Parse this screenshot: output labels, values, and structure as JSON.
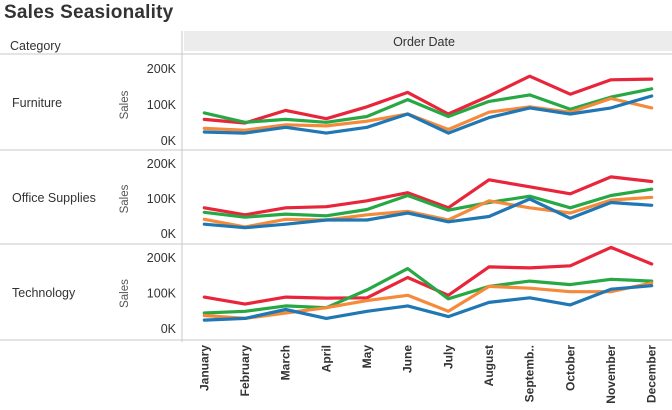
{
  "title": "Sales Seasionality",
  "header": {
    "row_dimension": "Category",
    "column_dimension": "Order Date"
  },
  "colors": {
    "red": "#e8253a",
    "green": "#27a844",
    "orange": "#f58a3b",
    "blue": "#1f77b4",
    "header_bg": "#ececec",
    "divider": "#c8c8c8"
  },
  "chart_data": [
    {
      "type": "line",
      "panel": "Furniture",
      "ylabel": "Sales",
      "ylim": [
        0,
        220000
      ],
      "yticks": [
        0,
        100000,
        200000
      ],
      "ytick_labels": [
        "0K",
        "100K",
        "200K"
      ],
      "categories": [
        "January",
        "February",
        "March",
        "April",
        "May",
        "June",
        "July",
        "August",
        "Septemb..",
        "October",
        "November",
        "December"
      ],
      "series": [
        {
          "color": "red",
          "values": [
            60000,
            50000,
            85000,
            62000,
            95000,
            135000,
            75000,
            125000,
            180000,
            130000,
            170000,
            172000
          ]
        },
        {
          "color": "green",
          "values": [
            78000,
            52000,
            60000,
            52000,
            68000,
            115000,
            68000,
            110000,
            128000,
            88000,
            122000,
            145000
          ]
        },
        {
          "color": "orange",
          "values": [
            35000,
            30000,
            45000,
            42000,
            55000,
            75000,
            32000,
            80000,
            95000,
            80000,
            118000,
            92000
          ]
        },
        {
          "color": "blue",
          "values": [
            25000,
            22000,
            38000,
            22000,
            38000,
            75000,
            22000,
            65000,
            92000,
            75000,
            92000,
            125000
          ]
        }
      ]
    },
    {
      "type": "line",
      "panel": "Office Supplies",
      "ylabel": "Sales",
      "ylim": [
        0,
        220000
      ],
      "yticks": [
        0,
        100000,
        200000
      ],
      "ytick_labels": [
        "0K",
        "100K",
        "200K"
      ],
      "categories": [
        "January",
        "February",
        "March",
        "April",
        "May",
        "June",
        "July",
        "August",
        "Septemb..",
        "October",
        "November",
        "December"
      ],
      "series": [
        {
          "color": "red",
          "values": [
            75000,
            55000,
            75000,
            78000,
            95000,
            118000,
            75000,
            155000,
            135000,
            115000,
            163000,
            150000
          ]
        },
        {
          "color": "green",
          "values": [
            62000,
            48000,
            57000,
            52000,
            70000,
            110000,
            68000,
            90000,
            108000,
            75000,
            110000,
            128000
          ]
        },
        {
          "color": "orange",
          "values": [
            42000,
            20000,
            42000,
            40000,
            55000,
            65000,
            40000,
            95000,
            75000,
            60000,
            97000,
            105000
          ]
        },
        {
          "color": "blue",
          "values": [
            28000,
            18000,
            28000,
            40000,
            40000,
            60000,
            35000,
            50000,
            100000,
            45000,
            90000,
            82000
          ]
        }
      ]
    },
    {
      "type": "line",
      "panel": "Technology",
      "ylabel": "Sales",
      "ylim": [
        0,
        220000
      ],
      "yticks": [
        0,
        100000,
        200000
      ],
      "ytick_labels": [
        "0K",
        "100K",
        "200K"
      ],
      "categories": [
        "January",
        "February",
        "March",
        "April",
        "May",
        "June",
        "July",
        "August",
        "Septemb..",
        "October",
        "November",
        "December"
      ],
      "series": [
        {
          "color": "red",
          "values": [
            90000,
            70000,
            90000,
            87000,
            88000,
            145000,
            95000,
            175000,
            172000,
            178000,
            230000,
            183000
          ]
        },
        {
          "color": "green",
          "values": [
            45000,
            50000,
            65000,
            60000,
            110000,
            170000,
            85000,
            120000,
            135000,
            125000,
            140000,
            135000
          ]
        },
        {
          "color": "orange",
          "values": [
            38000,
            30000,
            45000,
            60000,
            80000,
            95000,
            50000,
            120000,
            115000,
            105000,
            105000,
            130000
          ]
        },
        {
          "color": "blue",
          "values": [
            25000,
            30000,
            55000,
            30000,
            50000,
            65000,
            35000,
            75000,
            88000,
            68000,
            112000,
            122000
          ]
        }
      ]
    }
  ]
}
